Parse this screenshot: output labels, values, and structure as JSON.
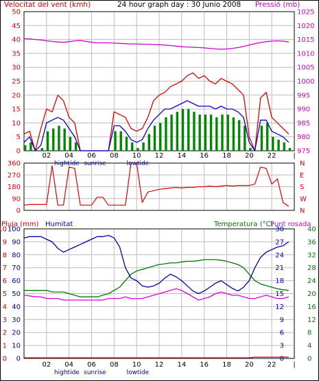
{
  "header": {
    "left_title": "Velocitat del vent (kmh)",
    "center_title": "24 hour graph day : 30 Junio 2008",
    "right_title": "Pressió (mb)"
  },
  "colors": {
    "wind_gust": "#dd0000",
    "wind_avg": "#0000cc",
    "wind_low": "#008800",
    "pressure": "#cc00cc",
    "direction": "#dd0000",
    "humidity": "#0000aa",
    "temperature": "#007700",
    "dewpoint": "#dd00dd",
    "rain": "#cc0000",
    "grid": "#bbbbbb"
  },
  "time_axis": {
    "ticks": [
      "02",
      "04",
      "06",
      "08",
      "10",
      "12",
      "14",
      "16",
      "18",
      "20",
      "22",
      "|"
    ],
    "annotations": [
      {
        "label": "hightide",
        "hour": 3.8
      },
      {
        "label": "sunrise",
        "hour": 6.3
      },
      {
        "label": "lowtide",
        "hour": 10.1
      },
      {
        "label": "hightide",
        "hour": 3.8
      },
      {
        "label": "sunrise",
        "hour": 6.3
      },
      {
        "label": "lowtide",
        "hour": 10.1
      }
    ]
  },
  "chart_data": [
    {
      "type": "line",
      "title": "24 hour graph day : 30 Junio 2008",
      "ylabel_left": "Velocitat del vent (kmh)",
      "ylabel_right": "Pressió (mb)",
      "y_left_ticks": [
        "0",
        "5",
        "10",
        "15",
        "20",
        "25",
        "30",
        "35",
        "40",
        "45",
        "50"
      ],
      "y_right_ticks": [
        "975",
        "980",
        "985",
        "990",
        "995",
        "1000",
        "1005",
        "1010",
        "1015",
        "1020",
        "1025"
      ],
      "ylim_left": [
        0,
        50
      ],
      "ylim_right": [
        975,
        1025
      ],
      "x_hours": [
        0,
        0.5,
        1,
        1.5,
        2,
        2.5,
        3,
        3.5,
        4,
        4.5,
        5,
        5.5,
        6,
        6.5,
        7,
        7.5,
        8,
        8.5,
        9,
        9.5,
        10,
        10.5,
        11,
        11.5,
        12,
        12.5,
        13,
        13.5,
        14,
        14.5,
        15,
        15.5,
        16,
        16.5,
        17,
        17.5,
        18,
        18.5,
        19,
        19.5,
        20,
        20.5,
        21,
        21.5,
        22,
        22.5,
        23,
        23.5
      ],
      "series": [
        {
          "key": "gust",
          "values": [
            6,
            7,
            0,
            8,
            15,
            14,
            20,
            18,
            12,
            10,
            0,
            0,
            0,
            0,
            0,
            0,
            14,
            13,
            12,
            8,
            7,
            8,
            12,
            18,
            20,
            21,
            23,
            24,
            25,
            27,
            28,
            26,
            27,
            25,
            24,
            26,
            25,
            24,
            22,
            20,
            5,
            0,
            19,
            21,
            12,
            10,
            8,
            6
          ]
        },
        {
          "key": "avg",
          "values": [
            3,
            5,
            0,
            2,
            10,
            11,
            12,
            11,
            8,
            5,
            0,
            0,
            0,
            0,
            0,
            0,
            9,
            9,
            7,
            4,
            3,
            4,
            8,
            11,
            13,
            15,
            15,
            16,
            17,
            18,
            17,
            16,
            16,
            16,
            15,
            16,
            15,
            15,
            14,
            12,
            3,
            0,
            11,
            11,
            7,
            6,
            5,
            3
          ]
        },
        {
          "key": "low",
          "values": [
            2,
            3,
            0,
            1,
            7,
            8,
            9,
            8,
            5,
            3,
            0,
            0,
            0,
            0,
            0,
            0,
            7,
            7,
            5,
            3,
            1,
            3,
            6,
            9,
            10,
            12,
            13,
            14,
            15,
            15,
            14,
            13,
            13,
            13,
            12,
            13,
            13,
            12,
            11,
            9,
            1,
            0,
            9,
            10,
            5,
            4,
            3,
            1
          ]
        },
        {
          "key": "pressure",
          "values": [
            1015.3,
            1015.2,
            1015,
            1014.8,
            1014.5,
            1014.3,
            1014.1,
            1014,
            1014.2,
            1014.5,
            1014.6,
            1014.3,
            1014,
            1013.8,
            1013.8,
            1013.8,
            1013.7,
            1013.6,
            1013.5,
            1013.4,
            1013.4,
            1013.3,
            1013.3,
            1013.2,
            1013.1,
            1013,
            1012.8,
            1012.6,
            1012.4,
            1012.3,
            1012.2,
            1012.1,
            1012,
            1011.8,
            1011.6,
            1011.5,
            1011.6,
            1011.8,
            1012.1,
            1012.5,
            1013,
            1013.5,
            1013.9,
            1014.2,
            1014.4,
            1014.5,
            1014.4,
            1014.1
          ]
        }
      ]
    },
    {
      "type": "line",
      "ylabel_right": "N W S E N",
      "y_left_ticks": [
        "0",
        "90",
        "180",
        "270",
        "360"
      ],
      "y_right_ticks": [
        "N",
        "W",
        "S",
        "E",
        "N"
      ],
      "ylim": [
        0,
        360
      ],
      "x_hours": [
        0,
        0.5,
        1,
        1.5,
        2,
        2.5,
        3,
        3.5,
        4,
        4.5,
        5,
        5.5,
        6,
        6.5,
        7,
        7.5,
        8,
        8.5,
        9,
        9.5,
        10,
        10.5,
        11,
        11.5,
        12,
        12.5,
        13,
        13.5,
        14,
        14.5,
        15,
        15.5,
        16,
        16.5,
        17,
        17.5,
        18,
        18.5,
        19,
        19.5,
        20,
        20.5,
        21,
        21.5,
        22,
        22.5,
        23,
        23.5
      ],
      "series": [
        {
          "key": "direction",
          "values": [
            40,
            45,
            45,
            45,
            45,
            340,
            40,
            40,
            330,
            320,
            40,
            40,
            40,
            100,
            100,
            40,
            40,
            40,
            40,
            360,
            360,
            60,
            140,
            150,
            160,
            165,
            170,
            175,
            170,
            175,
            175,
            180,
            180,
            185,
            180,
            185,
            190,
            185,
            190,
            190,
            190,
            200,
            330,
            320,
            200,
            240,
            60,
            30
          ]
        }
      ]
    },
    {
      "type": "line",
      "ylabel_left": "Pluja (mm)",
      "ylabel_left2": "Humitat",
      "ylabel_right": "Temperatura (°C)",
      "ylabel_right2": "Punt rosada",
      "y_rain_ticks": [
        "0",
        "1",
        "2",
        "3",
        "4",
        "5",
        "6",
        "7",
        "8",
        "9",
        "10"
      ],
      "y_hum_ticks": [
        "0",
        "3",
        "6",
        "9",
        "12",
        "15",
        "18",
        "21",
        "24",
        "27",
        "30"
      ],
      "y_humidity_ticks": [
        "0",
        "10",
        "20",
        "30",
        "40",
        "50",
        "60",
        "70",
        "80",
        "90",
        "100"
      ],
      "y_temp_ticks": [
        "0",
        "4",
        "8",
        "12",
        "16",
        "20",
        "24",
        "28",
        "32",
        "36",
        "40"
      ],
      "ylim_rain": [
        0,
        10
      ],
      "ylim_humidity": [
        0,
        100
      ],
      "ylim_temp": [
        0,
        40
      ],
      "x_hours": [
        0,
        0.5,
        1,
        1.5,
        2,
        2.5,
        3,
        3.5,
        4,
        4.5,
        5,
        5.5,
        6,
        6.5,
        7,
        7.5,
        8,
        8.5,
        9,
        9.5,
        10,
        10.5,
        11,
        11.5,
        12,
        12.5,
        13,
        13.5,
        14,
        14.5,
        15,
        15.5,
        16,
        16.5,
        17,
        17.5,
        18,
        18.5,
        19,
        19.5,
        20,
        20.5,
        21,
        21.5,
        22,
        22.5,
        23,
        23.5
      ],
      "series": [
        {
          "key": "humidity",
          "values": [
            93,
            94,
            94,
            94,
            92,
            90,
            85,
            82,
            84,
            86,
            88,
            90,
            92,
            94,
            94,
            95,
            93,
            86,
            70,
            62,
            60,
            56,
            55,
            56,
            58,
            62,
            65,
            63,
            60,
            56,
            52,
            50,
            52,
            55,
            58,
            60,
            57,
            54,
            52,
            55,
            60,
            70,
            78,
            82,
            84,
            86,
            87,
            90
          ]
        },
        {
          "key": "temperature",
          "values": [
            21,
            21,
            21,
            21,
            21,
            20.5,
            20.5,
            20.5,
            20,
            19.5,
            19,
            19,
            19,
            19,
            19.5,
            20,
            21,
            22,
            24,
            26,
            27,
            27.5,
            28,
            28.5,
            29,
            29.2,
            29.5,
            29.5,
            29.8,
            30,
            30,
            30.2,
            30.5,
            30.5,
            30.5,
            30.3,
            30,
            29.5,
            29,
            28,
            26,
            24,
            23,
            22.5,
            22,
            21.5,
            21.2,
            21
          ]
        },
        {
          "key": "dewpoint",
          "values": [
            19.5,
            19.3,
            19,
            19,
            18.5,
            18.5,
            18.5,
            18,
            18,
            18,
            18,
            18,
            18,
            18,
            18,
            18.5,
            18.5,
            18.5,
            19,
            18.5,
            18.5,
            18.5,
            19,
            19.5,
            20,
            20.5,
            21,
            21.5,
            21,
            20,
            19,
            18,
            18.5,
            19,
            20,
            20.5,
            20,
            19.5,
            19.5,
            19,
            18.5,
            18.5,
            19,
            19.5,
            19,
            18.5,
            18.5,
            19
          ]
        },
        {
          "key": "rain",
          "values": [
            0.05,
            0.05,
            0.05,
            0.05,
            0.05,
            0.05,
            0.05,
            0.05,
            0.05,
            0.05,
            0.05,
            0.05,
            0.05,
            0.05,
            0.05,
            0.05,
            0.05,
            0.05,
            0.05,
            0.05,
            0.05,
            0.05,
            0.05,
            0.05,
            0.05,
            0.05,
            0.05,
            0.05,
            0.05,
            0.05,
            0.05,
            0.05,
            0.05,
            0.05,
            0.05,
            0.05,
            0.05,
            0.05,
            0.05,
            0.05,
            0.05,
            0.1,
            0.1,
            0.1,
            0.1,
            0.1,
            0.1,
            0.1
          ]
        }
      ]
    }
  ]
}
